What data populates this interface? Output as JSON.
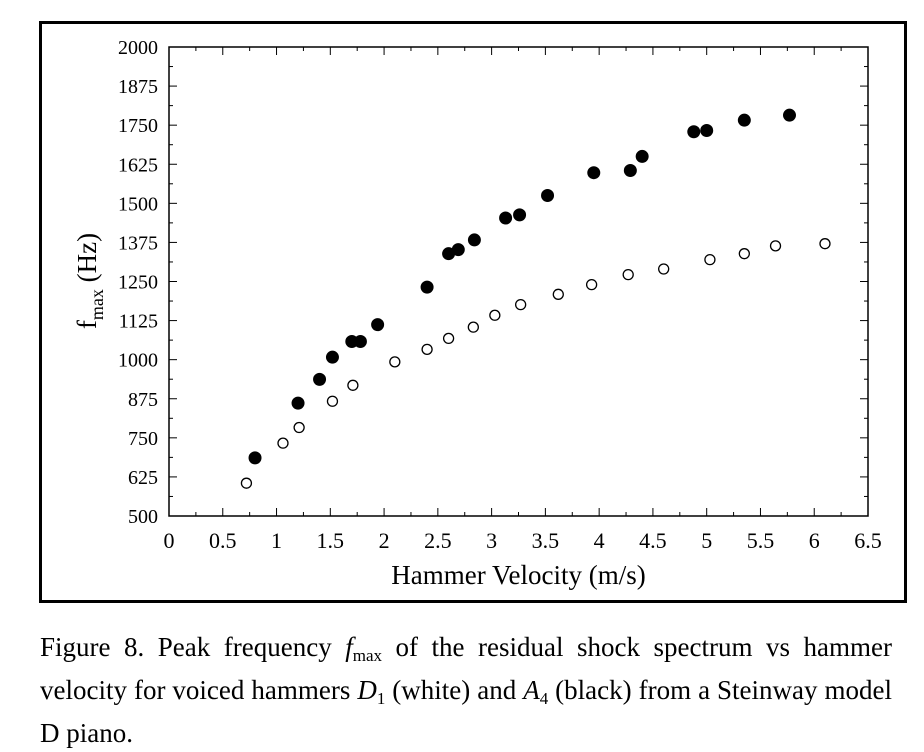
{
  "chart_data": {
    "type": "scatter",
    "xlabel": "Hammer Velocity (m/s)",
    "ylabel": "f",
    "ylabel_sub": "max",
    "ylabel_unit": "(Hz)",
    "xlim": [
      0,
      6.5
    ],
    "ylim": [
      500,
      2000
    ],
    "xticks": [
      0,
      0.5,
      1,
      1.5,
      2,
      2.5,
      3,
      3.5,
      4,
      4.5,
      5,
      5.5,
      6,
      6.5
    ],
    "xtick_labels": [
      "0",
      "0.5",
      "1",
      "1.5",
      "2",
      "2.5",
      "3",
      "3.5",
      "4",
      "4.5",
      "5",
      "5.5",
      "6",
      "6.5"
    ],
    "yticks": [
      500,
      625,
      750,
      875,
      1000,
      1125,
      1250,
      1375,
      1500,
      1625,
      1750,
      1875,
      2000
    ],
    "ytick_labels": [
      "500",
      "625",
      "750",
      "875",
      "1000",
      "1125",
      "1250",
      "1375",
      "1500",
      "1625",
      "1750",
      "1875",
      "2000"
    ],
    "grid": false,
    "series": [
      {
        "marker": "open-circle",
        "color": "#000000",
        "x": [
          0.72,
          1.06,
          1.21,
          1.52,
          1.71,
          2.1,
          2.4,
          2.6,
          2.83,
          3.03,
          3.27,
          3.62,
          3.93,
          4.27,
          4.6,
          5.03,
          5.35,
          5.64,
          6.1
        ],
        "y": [
          605,
          733,
          783,
          867,
          918,
          993,
          1033,
          1068,
          1104,
          1142,
          1176,
          1209,
          1240,
          1272,
          1290,
          1320,
          1339,
          1364,
          1371
        ]
      },
      {
        "marker": "filled-circle",
        "color": "#000000",
        "x": [
          0.8,
          1.2,
          1.4,
          1.52,
          1.7,
          1.78,
          1.94,
          2.4,
          2.6,
          2.69,
          2.84,
          3.13,
          3.26,
          3.52,
          3.95,
          4.29,
          4.4,
          4.88,
          5.0,
          5.35,
          5.77
        ],
        "y": [
          686,
          861,
          937,
          1008,
          1058,
          1058,
          1112,
          1232,
          1339,
          1352,
          1383,
          1453,
          1463,
          1525,
          1598,
          1605,
          1650,
          1729,
          1733,
          1766,
          1782
        ]
      }
    ]
  },
  "caption": {
    "prefix": "Figure 8. Peak frequency ",
    "fmax_f": "f",
    "fmax_sub": "max",
    "middle1": " of the residual shock spectrum vs hammer velocity for voiced hammers ",
    "d_letter": "D",
    "d_sub": "1",
    "middle2": " (white) and ",
    "a_letter": "A",
    "a_sub": "4",
    "suffix": " (black) from a Steinway model D piano."
  }
}
